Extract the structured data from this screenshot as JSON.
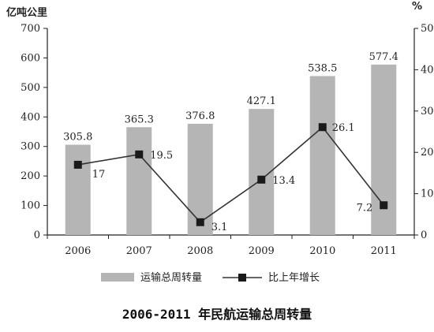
{
  "chart_data": {
    "type": "bar+line",
    "title": "2006-2011 年民航运输总周转量",
    "left_axis_unit": "亿吨公里",
    "right_axis_unit": "%",
    "categories": [
      "2006",
      "2007",
      "2008",
      "2009",
      "2010",
      "2011"
    ],
    "left_ylim": [
      0,
      700
    ],
    "left_ticks": [
      0,
      100,
      200,
      300,
      400,
      500,
      600,
      700
    ],
    "right_ylim": [
      0,
      50
    ],
    "right_ticks": [
      0,
      10,
      20,
      30,
      40,
      50
    ],
    "grid": false,
    "legend_position": "bottom",
    "series": [
      {
        "name": "运输总周转量",
        "kind": "bar",
        "axis": "left",
        "values": [
          305.8,
          365.3,
          376.8,
          427.1,
          538.5,
          577.4
        ],
        "labels": [
          "305.8",
          "365.3",
          "376.8",
          "427.1",
          "538.5",
          "577.4"
        ],
        "color": "#b5b5b5"
      },
      {
        "name": "比上年增长",
        "kind": "line",
        "axis": "right",
        "values": [
          17,
          19.5,
          3.1,
          13.4,
          26.1,
          7.2
        ],
        "labels": [
          "17",
          "19.5",
          "3.1",
          "13.4",
          "26.1",
          "7.2"
        ],
        "color": "#1a1a1a"
      }
    ]
  }
}
